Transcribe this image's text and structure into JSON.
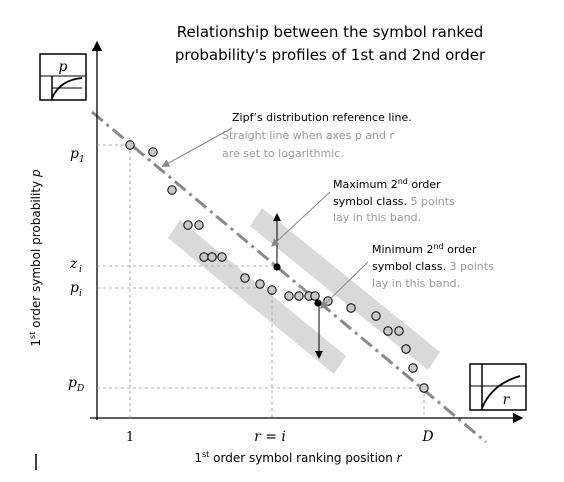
{
  "title": {
    "line1": "Relationship between the symbol ranked",
    "line2": "probability's profiles of 1st and 2nd order"
  },
  "axes": {
    "y_label": {
      "sup": "st",
      "pre": "1",
      "text": " order symbol probability ",
      "var": "p"
    },
    "x_label": {
      "sup": "st",
      "pre": "1",
      "text": " order symbol ranking position ",
      "var": "r"
    },
    "y_ticks": [
      {
        "base": "p",
        "sub": "1"
      },
      {
        "base": "z",
        "sub": "i"
      },
      {
        "base": "p",
        "sub": "i"
      },
      {
        "base": "p",
        "sub": "D"
      }
    ],
    "x_ticks": {
      "first": "1",
      "middle": "r = i",
      "last": "D"
    }
  },
  "icons": {
    "top_left_letter": "p",
    "bottom_right_letter": "r"
  },
  "annotations": {
    "zipf": {
      "bold": "Zipf’s distribution reference line.",
      "gray1": "Straight line when axes p and r",
      "gray2": "are set to logarithmic."
    },
    "max": {
      "bold1_pre": "Maximum 2",
      "bold1_sup": "nd",
      "bold1_post": " order",
      "bold2": "symbol class.",
      "gray2": " 5 points",
      "gray3": "lay in this band."
    },
    "min": {
      "bold1_pre": "Minimum 2",
      "bold1_sup": "nd",
      "bold1_post": " order",
      "bold2": "symbol class.",
      "gray2": " 3 points",
      "gray3": "lay in this band."
    }
  },
  "colors": {
    "band": "#d9d9d9",
    "point_fill": "#c8c8c8",
    "ref_line": "#8a8a8a",
    "gray_text": "#9a9a9a"
  },
  "chart_data": {
    "type": "scatter",
    "series": [
      {
        "points": [
          [
            130,
            145
          ],
          [
            153,
            152
          ],
          [
            172,
            190
          ],
          [
            188,
            225
          ],
          [
            199,
            225
          ],
          [
            204,
            257
          ],
          [
            212,
            257
          ],
          [
            222,
            257
          ],
          [
            245,
            278
          ],
          [
            260,
            284
          ],
          [
            272,
            290
          ],
          [
            289,
            296
          ],
          [
            299,
            296
          ],
          [
            309,
            296
          ],
          [
            315,
            296
          ],
          [
            328,
            301
          ],
          [
            351,
            308
          ],
          [
            376,
            316
          ],
          [
            388,
            331
          ],
          [
            399,
            331
          ],
          [
            406,
            349
          ],
          [
            413,
            368
          ],
          [
            424,
            388
          ]
        ]
      }
    ],
    "highlight_points": [
      [
        277,
        267
      ],
      [
        318,
        303
      ]
    ]
  }
}
